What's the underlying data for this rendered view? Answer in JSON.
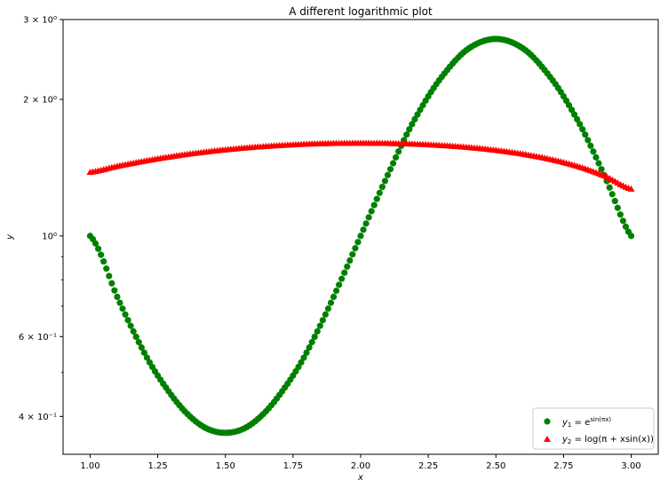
{
  "chart_data": {
    "type": "scatter",
    "title": "A different logarithmic plot",
    "xlabel": "x",
    "ylabel": "y",
    "xlim": [
      0.9,
      3.1
    ],
    "ylim": [
      0.33,
      3.0
    ],
    "yscale": "log",
    "x_ticks": [
      1.0,
      1.25,
      1.5,
      1.75,
      2.0,
      2.25,
      2.5,
      2.75,
      3.0
    ],
    "x_tick_labels": [
      "1.00",
      "1.25",
      "1.50",
      "1.75",
      "2.00",
      "2.25",
      "2.50",
      "2.75",
      "3.00"
    ],
    "y_ticks": [
      {
        "value": 0.4,
        "label": "4 × 10⁻¹"
      },
      {
        "value": 0.6,
        "label": "6 × 10⁻¹"
      },
      {
        "value": 1.0,
        "label": "10⁰"
      },
      {
        "value": 2.0,
        "label": "2 × 10⁰"
      },
      {
        "value": 3.0,
        "label": "3 × 10⁰"
      }
    ],
    "y_minor_ticks": [
      0.5,
      0.7,
      0.8,
      0.9
    ],
    "grid": false,
    "legend_position": "lower right",
    "x": [
      1.0,
      1.1,
      1.2,
      1.3,
      1.4,
      1.5,
      1.6,
      1.7,
      1.8,
      1.9,
      2.0,
      2.1,
      2.2,
      2.3,
      2.4,
      2.5,
      2.6,
      2.7,
      2.8,
      2.9,
      3.0
    ],
    "series": [
      {
        "name": "y₁ = e^{sin(πx)}",
        "marker": "circle",
        "color": "#008000",
        "values": [
          1.0,
          0.734,
          0.553,
          0.446,
          0.386,
          0.368,
          0.386,
          0.446,
          0.553,
          0.734,
          1.0,
          1.362,
          1.808,
          2.243,
          2.591,
          2.718,
          2.591,
          2.243,
          1.808,
          1.362,
          1.0
        ]
      },
      {
        "name": "y₂ = log(π + x sin(x))",
        "marker": "triangle",
        "color": "#ff0000",
        "values": [
          1.382,
          1.424,
          1.462,
          1.496,
          1.525,
          1.549,
          1.568,
          1.583,
          1.594,
          1.6,
          1.602,
          1.6,
          1.594,
          1.583,
          1.567,
          1.545,
          1.515,
          1.476,
          1.425,
          1.357,
          1.269
        ]
      }
    ],
    "legend": [
      {
        "math": "y",
        "sub": "1",
        "rest": " = e",
        "sup": "sin(πx)"
      },
      {
        "math": "y",
        "sub": "2",
        "rest": " = log(π + xsin(x))"
      }
    ]
  }
}
